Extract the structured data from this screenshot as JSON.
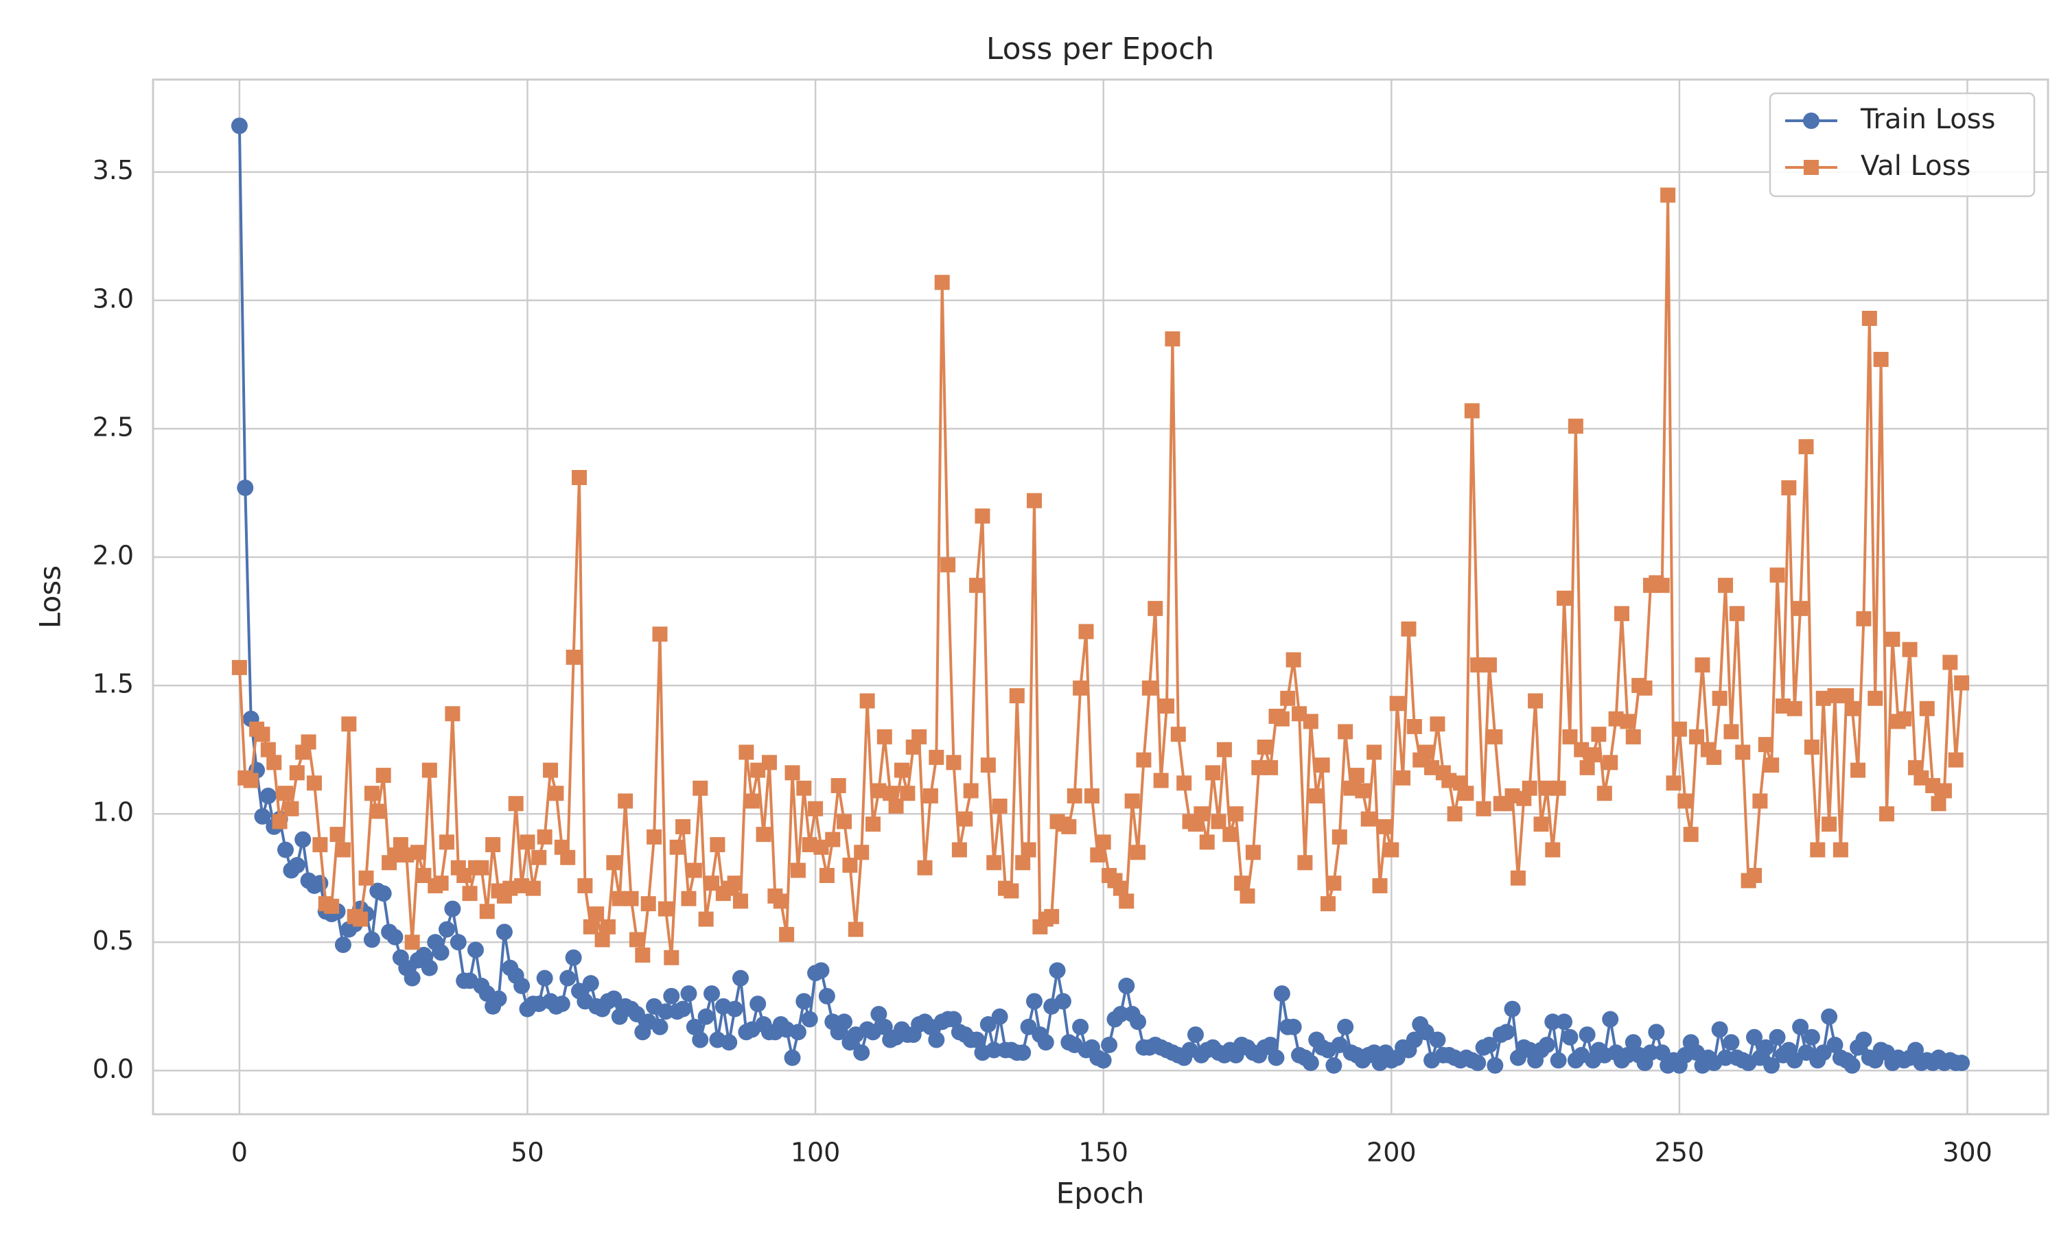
{
  "chart_data": {
    "type": "line",
    "title": "Loss per Epoch",
    "x_label": "Epoch",
    "y_label": "Loss",
    "x": [
      0,
      1,
      2,
      3,
      4,
      5,
      6,
      7,
      8,
      9,
      10,
      11,
      12,
      13,
      14,
      15,
      16,
      17,
      18,
      19,
      20,
      21,
      22,
      23,
      24,
      25,
      26,
      27,
      28,
      29,
      30,
      31,
      32,
      33,
      34,
      35,
      36,
      37,
      38,
      39,
      40,
      41,
      42,
      43,
      44,
      45,
      46,
      47,
      48,
      49,
      50,
      51,
      52,
      53,
      54,
      55,
      56,
      57,
      58,
      59,
      60,
      61,
      62,
      63,
      64,
      65,
      66,
      67,
      68,
      69,
      70,
      71,
      72,
      73,
      74,
      75,
      76,
      77,
      78,
      79,
      80,
      81,
      82,
      83,
      84,
      85,
      86,
      87,
      88,
      89,
      90,
      91,
      92,
      93,
      94,
      95,
      96,
      97,
      98,
      99,
      100,
      101,
      102,
      103,
      104,
      105,
      106,
      107,
      108,
      109,
      110,
      111,
      112,
      113,
      114,
      115,
      116,
      117,
      118,
      119,
      120,
      121,
      122,
      123,
      124,
      125,
      126,
      127,
      128,
      129,
      130,
      131,
      132,
      133,
      134,
      135,
      136,
      137,
      138,
      139,
      140,
      141,
      142,
      143,
      144,
      145,
      146,
      147,
      148,
      149,
      150,
      151,
      152,
      153,
      154,
      155,
      156,
      157,
      158,
      159,
      160,
      161,
      162,
      163,
      164,
      165,
      166,
      167,
      168,
      169,
      170,
      171,
      172,
      173,
      174,
      175,
      176,
      177,
      178,
      179,
      180,
      181,
      182,
      183,
      184,
      185,
      186,
      187,
      188,
      189,
      190,
      191,
      192,
      193,
      194,
      195,
      196,
      197,
      198,
      199,
      200,
      201,
      202,
      203,
      204,
      205,
      206,
      207,
      208,
      209,
      210,
      211,
      212,
      213,
      214,
      215,
      216,
      217,
      218,
      219,
      220,
      221,
      222,
      223,
      224,
      225,
      226,
      227,
      228,
      229,
      230,
      231,
      232,
      233,
      234,
      235,
      236,
      237,
      238,
      239,
      240,
      241,
      242,
      243,
      244,
      245,
      246,
      247,
      248,
      249,
      250,
      251,
      252,
      253,
      254,
      255,
      256,
      257,
      258,
      259,
      260,
      261,
      262,
      263,
      264,
      265,
      266,
      267,
      268,
      269,
      270,
      271,
      272,
      273,
      274,
      275,
      276,
      277,
      278,
      279,
      280,
      281,
      282,
      283,
      284,
      285,
      286,
      287,
      288,
      289,
      290,
      291,
      292,
      293,
      294,
      295,
      296,
      297,
      298,
      299
    ],
    "series": [
      {
        "name": "Train Loss",
        "color": "#4c72b0",
        "marker": "circle",
        "values": [
          3.68,
          2.27,
          1.37,
          1.17,
          0.99,
          1.07,
          0.95,
          0.98,
          0.86,
          0.78,
          0.8,
          0.9,
          0.74,
          0.72,
          0.73,
          0.62,
          0.61,
          0.62,
          0.49,
          0.55,
          0.57,
          0.63,
          0.61,
          0.51,
          0.7,
          0.69,
          0.54,
          0.52,
          0.44,
          0.4,
          0.36,
          0.43,
          0.45,
          0.4,
          0.5,
          0.46,
          0.55,
          0.63,
          0.5,
          0.35,
          0.35,
          0.47,
          0.33,
          0.3,
          0.25,
          0.28,
          0.54,
          0.4,
          0.37,
          0.33,
          0.24,
          0.26,
          0.26,
          0.36,
          0.27,
          0.25,
          0.26,
          0.36,
          0.44,
          0.31,
          0.27,
          0.34,
          0.25,
          0.24,
          0.27,
          0.28,
          0.21,
          0.25,
          0.24,
          0.22,
          0.15,
          0.19,
          0.25,
          0.17,
          0.23,
          0.29,
          0.23,
          0.24,
          0.3,
          0.17,
          0.12,
          0.21,
          0.3,
          0.12,
          0.25,
          0.11,
          0.24,
          0.36,
          0.15,
          0.16,
          0.26,
          0.18,
          0.15,
          0.15,
          0.18,
          0.16,
          0.05,
          0.15,
          0.27,
          0.2,
          0.38,
          0.39,
          0.29,
          0.19,
          0.15,
          0.19,
          0.11,
          0.14,
          0.07,
          0.16,
          0.15,
          0.22,
          0.17,
          0.12,
          0.13,
          0.16,
          0.14,
          0.14,
          0.18,
          0.19,
          0.17,
          0.12,
          0.19,
          0.2,
          0.2,
          0.15,
          0.14,
          0.12,
          0.12,
          0.07,
          0.18,
          0.08,
          0.21,
          0.08,
          0.08,
          0.07,
          0.07,
          0.17,
          0.27,
          0.14,
          0.11,
          0.25,
          0.39,
          0.27,
          0.11,
          0.1,
          0.17,
          0.08,
          0.09,
          0.05,
          0.04,
          0.1,
          0.2,
          0.22,
          0.33,
          0.22,
          0.19,
          0.09,
          0.09,
          0.1,
          0.09,
          0.08,
          0.07,
          0.06,
          0.05,
          0.08,
          0.14,
          0.06,
          0.08,
          0.09,
          0.07,
          0.06,
          0.08,
          0.06,
          0.1,
          0.09,
          0.07,
          0.06,
          0.09,
          0.1,
          0.05,
          0.3,
          0.17,
          0.17,
          0.06,
          0.05,
          0.03,
          0.12,
          0.09,
          0.08,
          0.02,
          0.1,
          0.17,
          0.07,
          0.06,
          0.04,
          0.06,
          0.07,
          0.03,
          0.07,
          0.04,
          0.05,
          0.09,
          0.08,
          0.12,
          0.18,
          0.15,
          0.04,
          0.12,
          0.06,
          0.06,
          0.05,
          0.04,
          0.05,
          0.04,
          0.03,
          0.09,
          0.1,
          0.02,
          0.14,
          0.15,
          0.24,
          0.05,
          0.09,
          0.08,
          0.04,
          0.08,
          0.1,
          0.19,
          0.04,
          0.19,
          0.13,
          0.04,
          0.06,
          0.14,
          0.04,
          0.08,
          0.06,
          0.2,
          0.07,
          0.04,
          0.06,
          0.11,
          0.06,
          0.03,
          0.07,
          0.15,
          0.07,
          0.02,
          0.04,
          0.02,
          0.06,
          0.11,
          0.07,
          0.02,
          0.05,
          0.03,
          0.16,
          0.05,
          0.11,
          0.05,
          0.04,
          0.03,
          0.13,
          0.05,
          0.09,
          0.02,
          0.13,
          0.06,
          0.08,
          0.04,
          0.17,
          0.07,
          0.13,
          0.04,
          0.07,
          0.21,
          0.1,
          0.05,
          0.04,
          0.02,
          0.09,
          0.12,
          0.05,
          0.04,
          0.08,
          0.07,
          0.03,
          0.05,
          0.04,
          0.05,
          0.08,
          0.03,
          0.04,
          0.03,
          0.05,
          0.03,
          0.04,
          0.03,
          0.03
        ]
      },
      {
        "name": "Val Loss",
        "color": "#dd8452",
        "marker": "square",
        "values": [
          1.57,
          1.14,
          1.13,
          1.33,
          1.31,
          1.25,
          1.2,
          0.97,
          1.08,
          1.02,
          1.16,
          1.24,
          1.28,
          1.12,
          0.88,
          0.65,
          0.64,
          0.92,
          0.86,
          1.35,
          0.6,
          0.59,
          0.75,
          1.08,
          1.01,
          1.15,
          0.81,
          0.84,
          0.88,
          0.84,
          0.5,
          0.85,
          0.76,
          1.17,
          0.72,
          0.73,
          0.89,
          1.39,
          0.79,
          0.76,
          0.69,
          0.79,
          0.79,
          0.62,
          0.88,
          0.7,
          0.68,
          0.71,
          1.04,
          0.72,
          0.89,
          0.71,
          0.83,
          0.91,
          1.17,
          1.08,
          0.87,
          0.83,
          1.61,
          2.31,
          0.72,
          0.56,
          0.61,
          0.51,
          0.56,
          0.81,
          0.67,
          1.05,
          0.67,
          0.51,
          0.45,
          0.65,
          0.91,
          1.7,
          0.63,
          0.44,
          0.87,
          0.95,
          0.67,
          0.78,
          1.1,
          0.59,
          0.73,
          0.88,
          0.69,
          0.71,
          0.73,
          0.66,
          1.24,
          1.05,
          1.17,
          0.92,
          1.2,
          0.68,
          0.66,
          0.53,
          1.16,
          0.78,
          1.1,
          0.88,
          1.02,
          0.87,
          0.76,
          0.9,
          1.11,
          0.97,
          0.8,
          0.55,
          0.85,
          1.44,
          0.96,
          1.09,
          1.3,
          1.08,
          1.03,
          1.17,
          1.08,
          1.26,
          1.3,
          0.79,
          1.07,
          1.22,
          3.07,
          1.97,
          1.2,
          0.86,
          0.98,
          1.09,
          1.89,
          2.16,
          1.19,
          0.81,
          1.03,
          0.71,
          0.7,
          1.46,
          0.81,
          0.86,
          2.22,
          0.56,
          0.59,
          0.6,
          0.97,
          0.96,
          0.95,
          1.07,
          1.49,
          1.71,
          1.07,
          0.84,
          0.89,
          0.76,
          0.74,
          0.71,
          0.66,
          1.05,
          0.85,
          1.21,
          1.49,
          1.8,
          1.13,
          1.42,
          2.85,
          1.31,
          1.12,
          0.97,
          0.96,
          1.0,
          0.89,
          1.16,
          0.97,
          1.25,
          0.92,
          1.0,
          0.73,
          0.68,
          0.85,
          1.18,
          1.26,
          1.18,
          1.38,
          1.37,
          1.45,
          1.6,
          1.39,
          0.81,
          1.36,
          1.07,
          1.19,
          0.65,
          0.73,
          0.91,
          1.32,
          1.1,
          1.15,
          1.09,
          0.98,
          1.24,
          0.72,
          0.95,
          0.86,
          1.43,
          1.14,
          1.72,
          1.34,
          1.21,
          1.24,
          1.18,
          1.35,
          1.16,
          1.13,
          1.0,
          1.12,
          1.08,
          2.57,
          1.58,
          1.02,
          1.58,
          1.3,
          1.04,
          1.04,
          1.07,
          0.75,
          1.06,
          1.1,
          1.44,
          0.96,
          1.1,
          0.86,
          1.1,
          1.84,
          1.3,
          2.51,
          1.25,
          1.18,
          1.23,
          1.31,
          1.08,
          1.2,
          1.37,
          1.78,
          1.36,
          1.3,
          1.5,
          1.49,
          1.89,
          1.9,
          1.89,
          3.41,
          1.12,
          1.33,
          1.05,
          0.92,
          1.3,
          1.58,
          1.25,
          1.22,
          1.45,
          1.89,
          1.32,
          1.78,
          1.24,
          0.74,
          0.76,
          1.05,
          1.27,
          1.19,
          1.93,
          1.42,
          2.27,
          1.41,
          1.8,
          2.43,
          1.26,
          0.86,
          1.45,
          0.96,
          1.46,
          0.86,
          1.46,
          1.41,
          1.17,
          1.76,
          2.93,
          1.45,
          2.77,
          1.0,
          1.68,
          1.36,
          1.37,
          1.64,
          1.18,
          1.14,
          1.41,
          1.11,
          1.04,
          1.09,
          1.59,
          1.21,
          1.51
        ]
      }
    ],
    "xlim": [
      -15,
      314
    ],
    "ylim": [
      -0.17,
      3.86
    ],
    "xticks": [
      0,
      50,
      100,
      150,
      200,
      250,
      300
    ],
    "yticks": [
      {
        "value": 0,
        "label": "0.0"
      },
      0.5,
      {
        "value": 1,
        "label": "1.0"
      },
      1.5,
      {
        "value": 2,
        "label": "2.0"
      },
      2.5,
      {
        "value": 3,
        "label": "3.0"
      },
      3.5
    ],
    "grid": true,
    "legend": "upper right"
  }
}
